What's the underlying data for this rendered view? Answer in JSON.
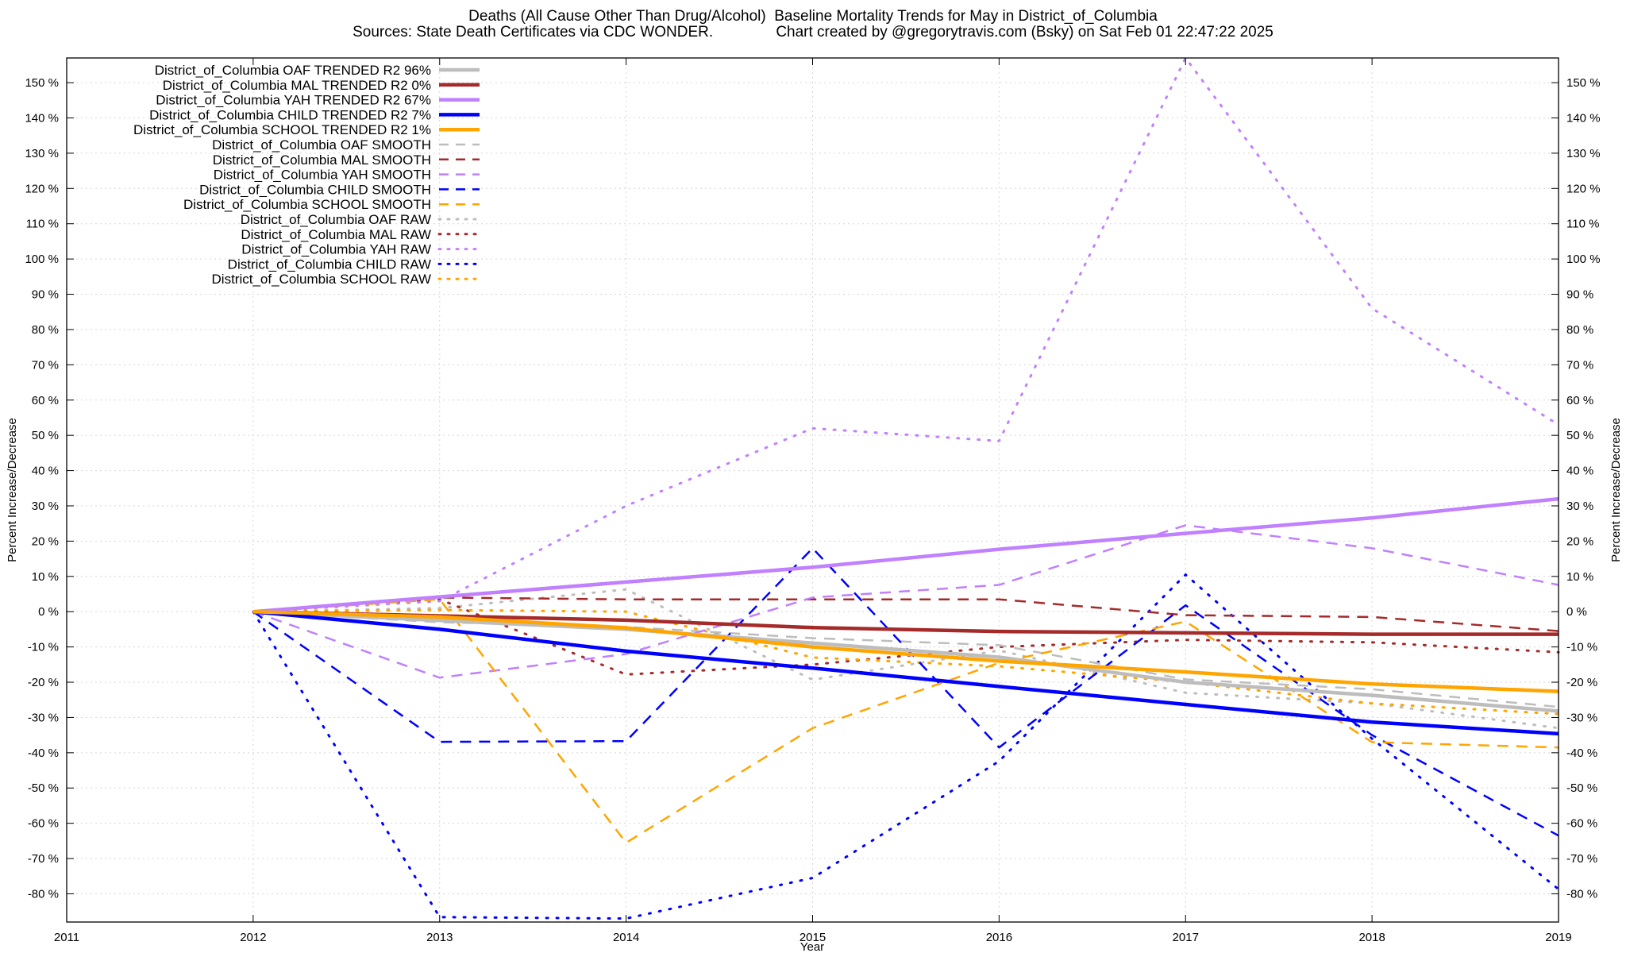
{
  "chart_data": {
    "type": "line",
    "title": "Deaths (All Cause Other Than Drug/Alcohol)  Baseline Mortality Trends for May in District_of_Columbia",
    "subtitle": "Sources: State Death Certificates via CDC WONDER.               Chart created by @gregorytravis.com (Bsky) on Sat Feb 01 22:47:22 2025",
    "xlabel": "Year",
    "ylabel": "Percent Increase/Decrease",
    "y2label": "Percent Increase/Decrease",
    "xlim": [
      2011,
      2019
    ],
    "ylim": [
      -88,
      157
    ],
    "x_ticks": [
      2011,
      2012,
      2013,
      2014,
      2015,
      2016,
      2017,
      2018,
      2019
    ],
    "x_tick_labels": [
      "2011",
      "2012",
      "2013",
      "2014",
      "2015",
      "2016",
      "2017",
      "2018",
      "2019"
    ],
    "y_ticks": [
      -80,
      -70,
      -60,
      -50,
      -40,
      -30,
      -20,
      -10,
      0,
      10,
      20,
      30,
      40,
      50,
      60,
      70,
      80,
      90,
      100,
      110,
      120,
      130,
      140,
      150
    ],
    "y_tick_labels": [
      "-80 %",
      "-70 %",
      "-60 %",
      "-50 %",
      "-40 %",
      "-30 %",
      "-20 %",
      "-10 %",
      "0 %",
      "10 %",
      "20 %",
      "30 %",
      "40 %",
      "50 %",
      "60 %",
      "70 %",
      "80 %",
      "90 %",
      "100 %",
      "110 %",
      "120 %",
      "130 %",
      "140 %",
      "150 %"
    ],
    "grid": true,
    "legend_position": "top-left",
    "x": [
      2012,
      2013,
      2014,
      2015,
      2016,
      2017,
      2018,
      2019
    ],
    "series": [
      {
        "name": "District_of_Columbia OAF TRENDED R2  96%",
        "style": "solid",
        "color": "#bdbdbd",
        "values": [
          0,
          -2.5,
          -5,
          -8.9,
          -12.9,
          -20,
          -23.7,
          -28.2
        ]
      },
      {
        "name": "District_of_Columbia MAL TRENDED R2   0%",
        "style": "solid",
        "color": "#a52a2a",
        "values": [
          0,
          -1.2,
          -2.4,
          -4.5,
          -5.6,
          -6,
          -6.4,
          -6.4
        ]
      },
      {
        "name": "District_of_Columbia YAH TRENDED R2  67%",
        "style": "solid",
        "color": "#c080ff",
        "values": [
          0,
          4.2,
          8.4,
          12.6,
          17.7,
          22.2,
          26.6,
          32
        ]
      },
      {
        "name": "District_of_Columbia CHILD TRENDED R2   7%",
        "style": "solid",
        "color": "#0000ff",
        "values": [
          0,
          -5,
          -11.2,
          -16,
          -21.2,
          -26.3,
          -31.3,
          -34.6
        ]
      },
      {
        "name": "District_of_Columbia SCHOOL TRENDED R2   1%",
        "style": "solid",
        "color": "#ffa500",
        "values": [
          0,
          -1.5,
          -4.6,
          -10,
          -14,
          -17.1,
          -20.5,
          -22.6
        ]
      },
      {
        "name": "District_of_Columbia OAF SMOOTH",
        "style": "dashed",
        "color": "#bdbdbd",
        "values": [
          0,
          -3,
          -4.3,
          -7.5,
          -9.5,
          -19.2,
          -22,
          -27
        ]
      },
      {
        "name": "District_of_Columbia MAL SMOOTH",
        "style": "dashed",
        "color": "#a52a2a",
        "values": [
          0,
          4,
          3.5,
          3.5,
          3.5,
          -1,
          -1.5,
          -5.5
        ]
      },
      {
        "name": "District_of_Columbia YAH SMOOTH",
        "style": "dashed",
        "color": "#c080ff",
        "values": [
          0,
          -18.7,
          -12,
          4,
          7.6,
          24.5,
          18,
          7.6
        ]
      },
      {
        "name": "District_of_Columbia CHILD SMOOTH",
        "style": "dashed",
        "color": "#0000ff",
        "values": [
          0,
          -36.9,
          -36.7,
          18,
          -38.5,
          1.8,
          -35,
          -63.5
        ]
      },
      {
        "name": "District_of_Columbia SCHOOL SMOOTH",
        "style": "dashed",
        "color": "#ffa500",
        "values": [
          0,
          3.5,
          -65.5,
          -33,
          -14.5,
          -2.8,
          -37,
          -38.5
        ]
      },
      {
        "name": "District_of_Columbia OAF RAW",
        "style": "dotted",
        "color": "#bdbdbd",
        "values": [
          0,
          1,
          6.3,
          -19.3,
          -11,
          -23,
          -26,
          -33
        ]
      },
      {
        "name": "District_of_Columbia MAL RAW",
        "style": "dotted",
        "color": "#a52a2a",
        "values": [
          0,
          3.5,
          -17.8,
          -15,
          -10,
          -8,
          -8.7,
          -11.5
        ]
      },
      {
        "name": "District_of_Columbia YAH RAW",
        "style": "dotted",
        "color": "#c080ff",
        "values": [
          0,
          3,
          30,
          52,
          48.4,
          157,
          86,
          53
        ]
      },
      {
        "name": "District_of_Columbia CHILD RAW",
        "style": "dotted",
        "color": "#0000ff",
        "values": [
          0,
          -86.6,
          -87,
          -75.5,
          -42.4,
          10.5,
          -36,
          -78.7
        ]
      },
      {
        "name": "District_of_Columbia SCHOOL RAW",
        "style": "dotted",
        "color": "#ffa500",
        "values": [
          0,
          0.5,
          0,
          -13,
          -15.5,
          -20,
          -26,
          -29
        ]
      }
    ]
  }
}
